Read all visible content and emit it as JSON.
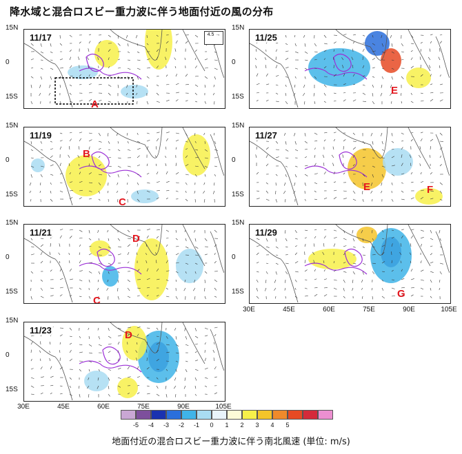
{
  "title": "降水域と混合ロスビー重力波に伴う地面付近の風の分布",
  "lat_labels": [
    "15N",
    "0",
    "15S"
  ],
  "lon_labels": [
    "30E",
    "45E",
    "60E",
    "75E",
    "90E",
    "105E"
  ],
  "reference_vector": "4.5",
  "panels": [
    {
      "date": "11/17",
      "annotations": [
        "A"
      ]
    },
    {
      "date": "11/19",
      "annotations": [
        "B",
        "C"
      ]
    },
    {
      "date": "11/21",
      "annotations": [
        "D",
        "C"
      ]
    },
    {
      "date": "11/23",
      "annotations": [
        "D"
      ]
    },
    {
      "date": "11/25",
      "annotations": [
        "E"
      ]
    },
    {
      "date": "11/27",
      "annotations": [
        "E",
        "F"
      ]
    },
    {
      "date": "11/29",
      "annotations": [
        "G"
      ]
    }
  ],
  "colorbar": {
    "ticks": [
      "-5",
      "-4",
      "-3",
      "-2",
      "-1",
      "0",
      "1",
      "2",
      "3",
      "4",
      "5"
    ],
    "colors": [
      "#c9a7d4",
      "#7d4f9c",
      "#1a32b0",
      "#2a6fdc",
      "#3fb4e8",
      "#a9dcf2",
      "#e9f4fb",
      "#fdfbd8",
      "#f7f04a",
      "#f4c42a",
      "#ef8a2b",
      "#e64a24",
      "#d42a3a",
      "#ec8fd0"
    ]
  },
  "caption": "地面付近の混合ロスビー重力波に伴う南北風速 (単位: m/s)"
}
